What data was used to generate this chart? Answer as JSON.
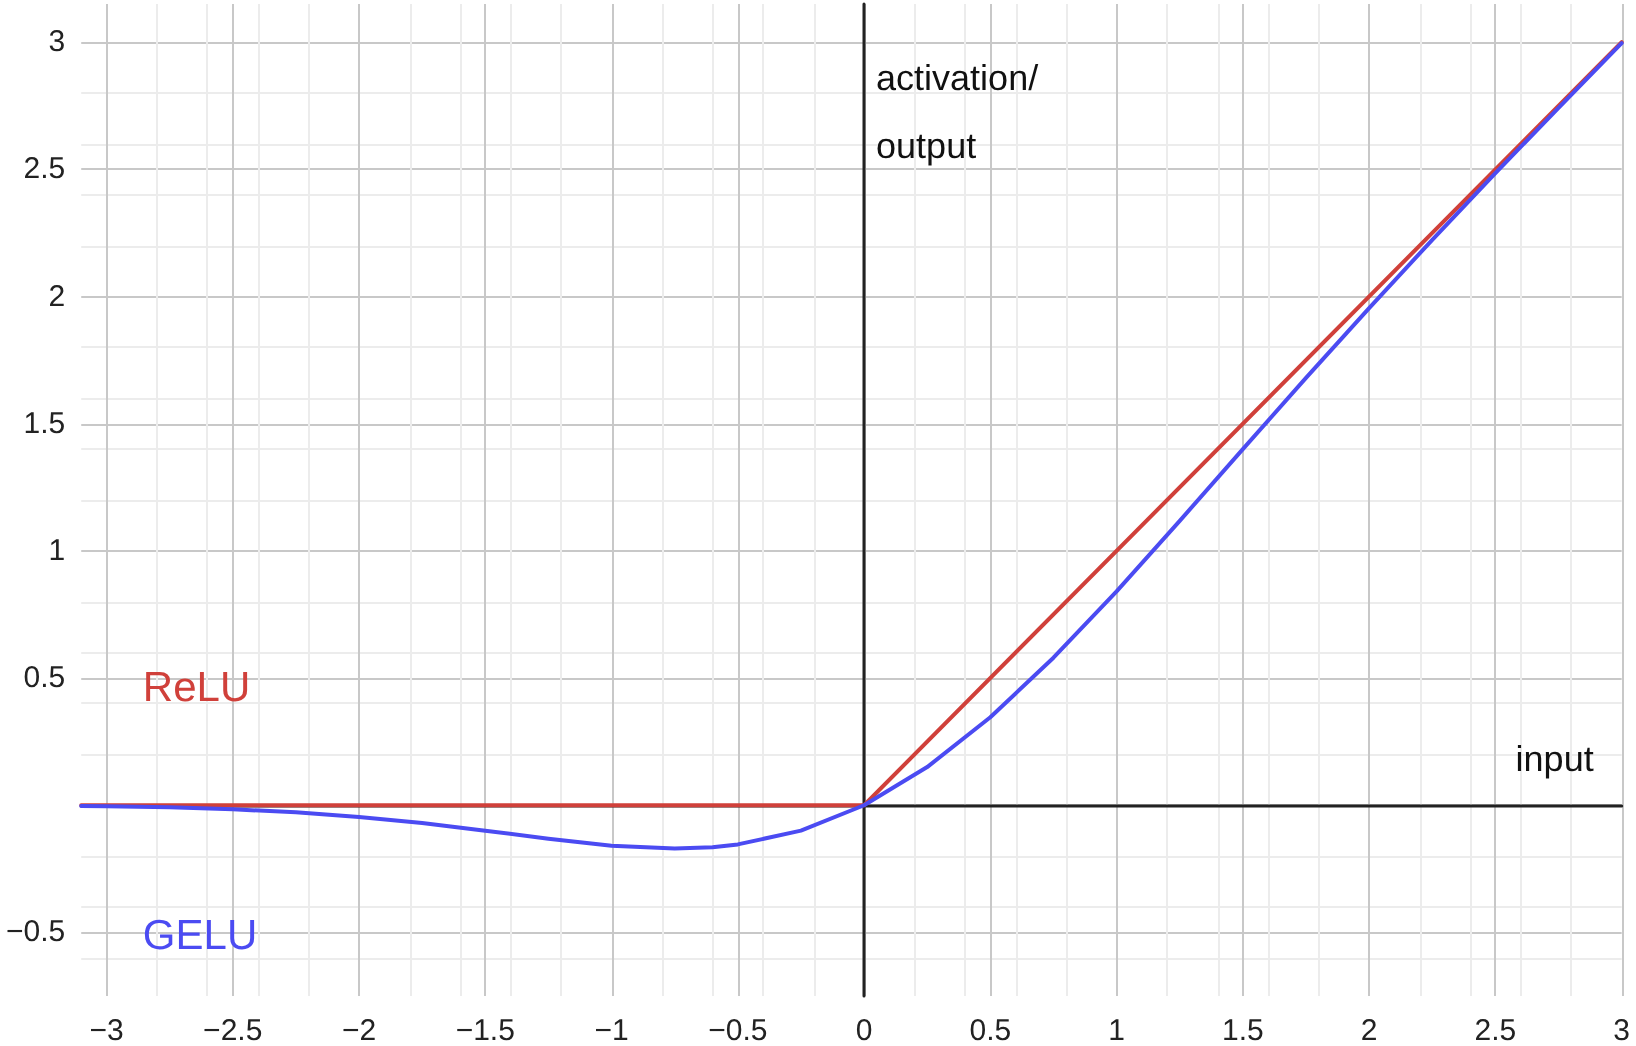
{
  "chart_data": {
    "type": "line",
    "xlabel": "input",
    "ylabel": "activation/\noutput",
    "xlim": [
      -3.1,
      3
    ],
    "ylim": [
      -0.75,
      3.15
    ],
    "xticks": [
      {
        "value": -3,
        "label": "−3"
      },
      {
        "value": -2.5,
        "label": "−2.5"
      },
      {
        "value": -2,
        "label": "−2"
      },
      {
        "value": -1.5,
        "label": "−1.5"
      },
      {
        "value": -1,
        "label": "−1"
      },
      {
        "value": -0.5,
        "label": "−0.5"
      },
      0,
      0.5,
      1,
      1.5,
      2,
      2.5,
      3
    ],
    "yticks": [
      {
        "value": -0.5,
        "label": "−0.5"
      },
      {
        "value": 0,
        "label": null
      },
      0.5,
      1,
      1.5,
      2,
      2.5,
      3
    ],
    "grid": true,
    "legend": false,
    "marker": "none",
    "line_style": "solid",
    "series": [
      {
        "name": "ReLU",
        "color": "#d0403a",
        "x": [
          -3.1,
          0,
          3
        ],
        "values": [
          0,
          0,
          3
        ]
      },
      {
        "name": "GELU",
        "color": "#4b4bf2",
        "x": [
          -3.1,
          -3,
          -2.75,
          -2.5,
          -2.25,
          -2,
          -1.75,
          -1.5,
          -1.25,
          -1,
          -0.75,
          -0.6,
          -0.5,
          -0.25,
          0,
          0.25,
          0.5,
          0.75,
          1,
          1.25,
          1.5,
          1.75,
          2,
          2.25,
          2.5,
          2.75,
          3
        ],
        "values": [
          -0.003,
          -0.004,
          -0.008,
          -0.016,
          -0.028,
          -0.046,
          -0.07,
          -0.1,
          -0.132,
          -0.159,
          -0.17,
          -0.165,
          -0.154,
          -0.1,
          0,
          0.15,
          0.346,
          0.58,
          0.841,
          1.118,
          1.4,
          1.68,
          1.954,
          2.223,
          2.485,
          2.742,
          2.996
        ]
      }
    ]
  }
}
